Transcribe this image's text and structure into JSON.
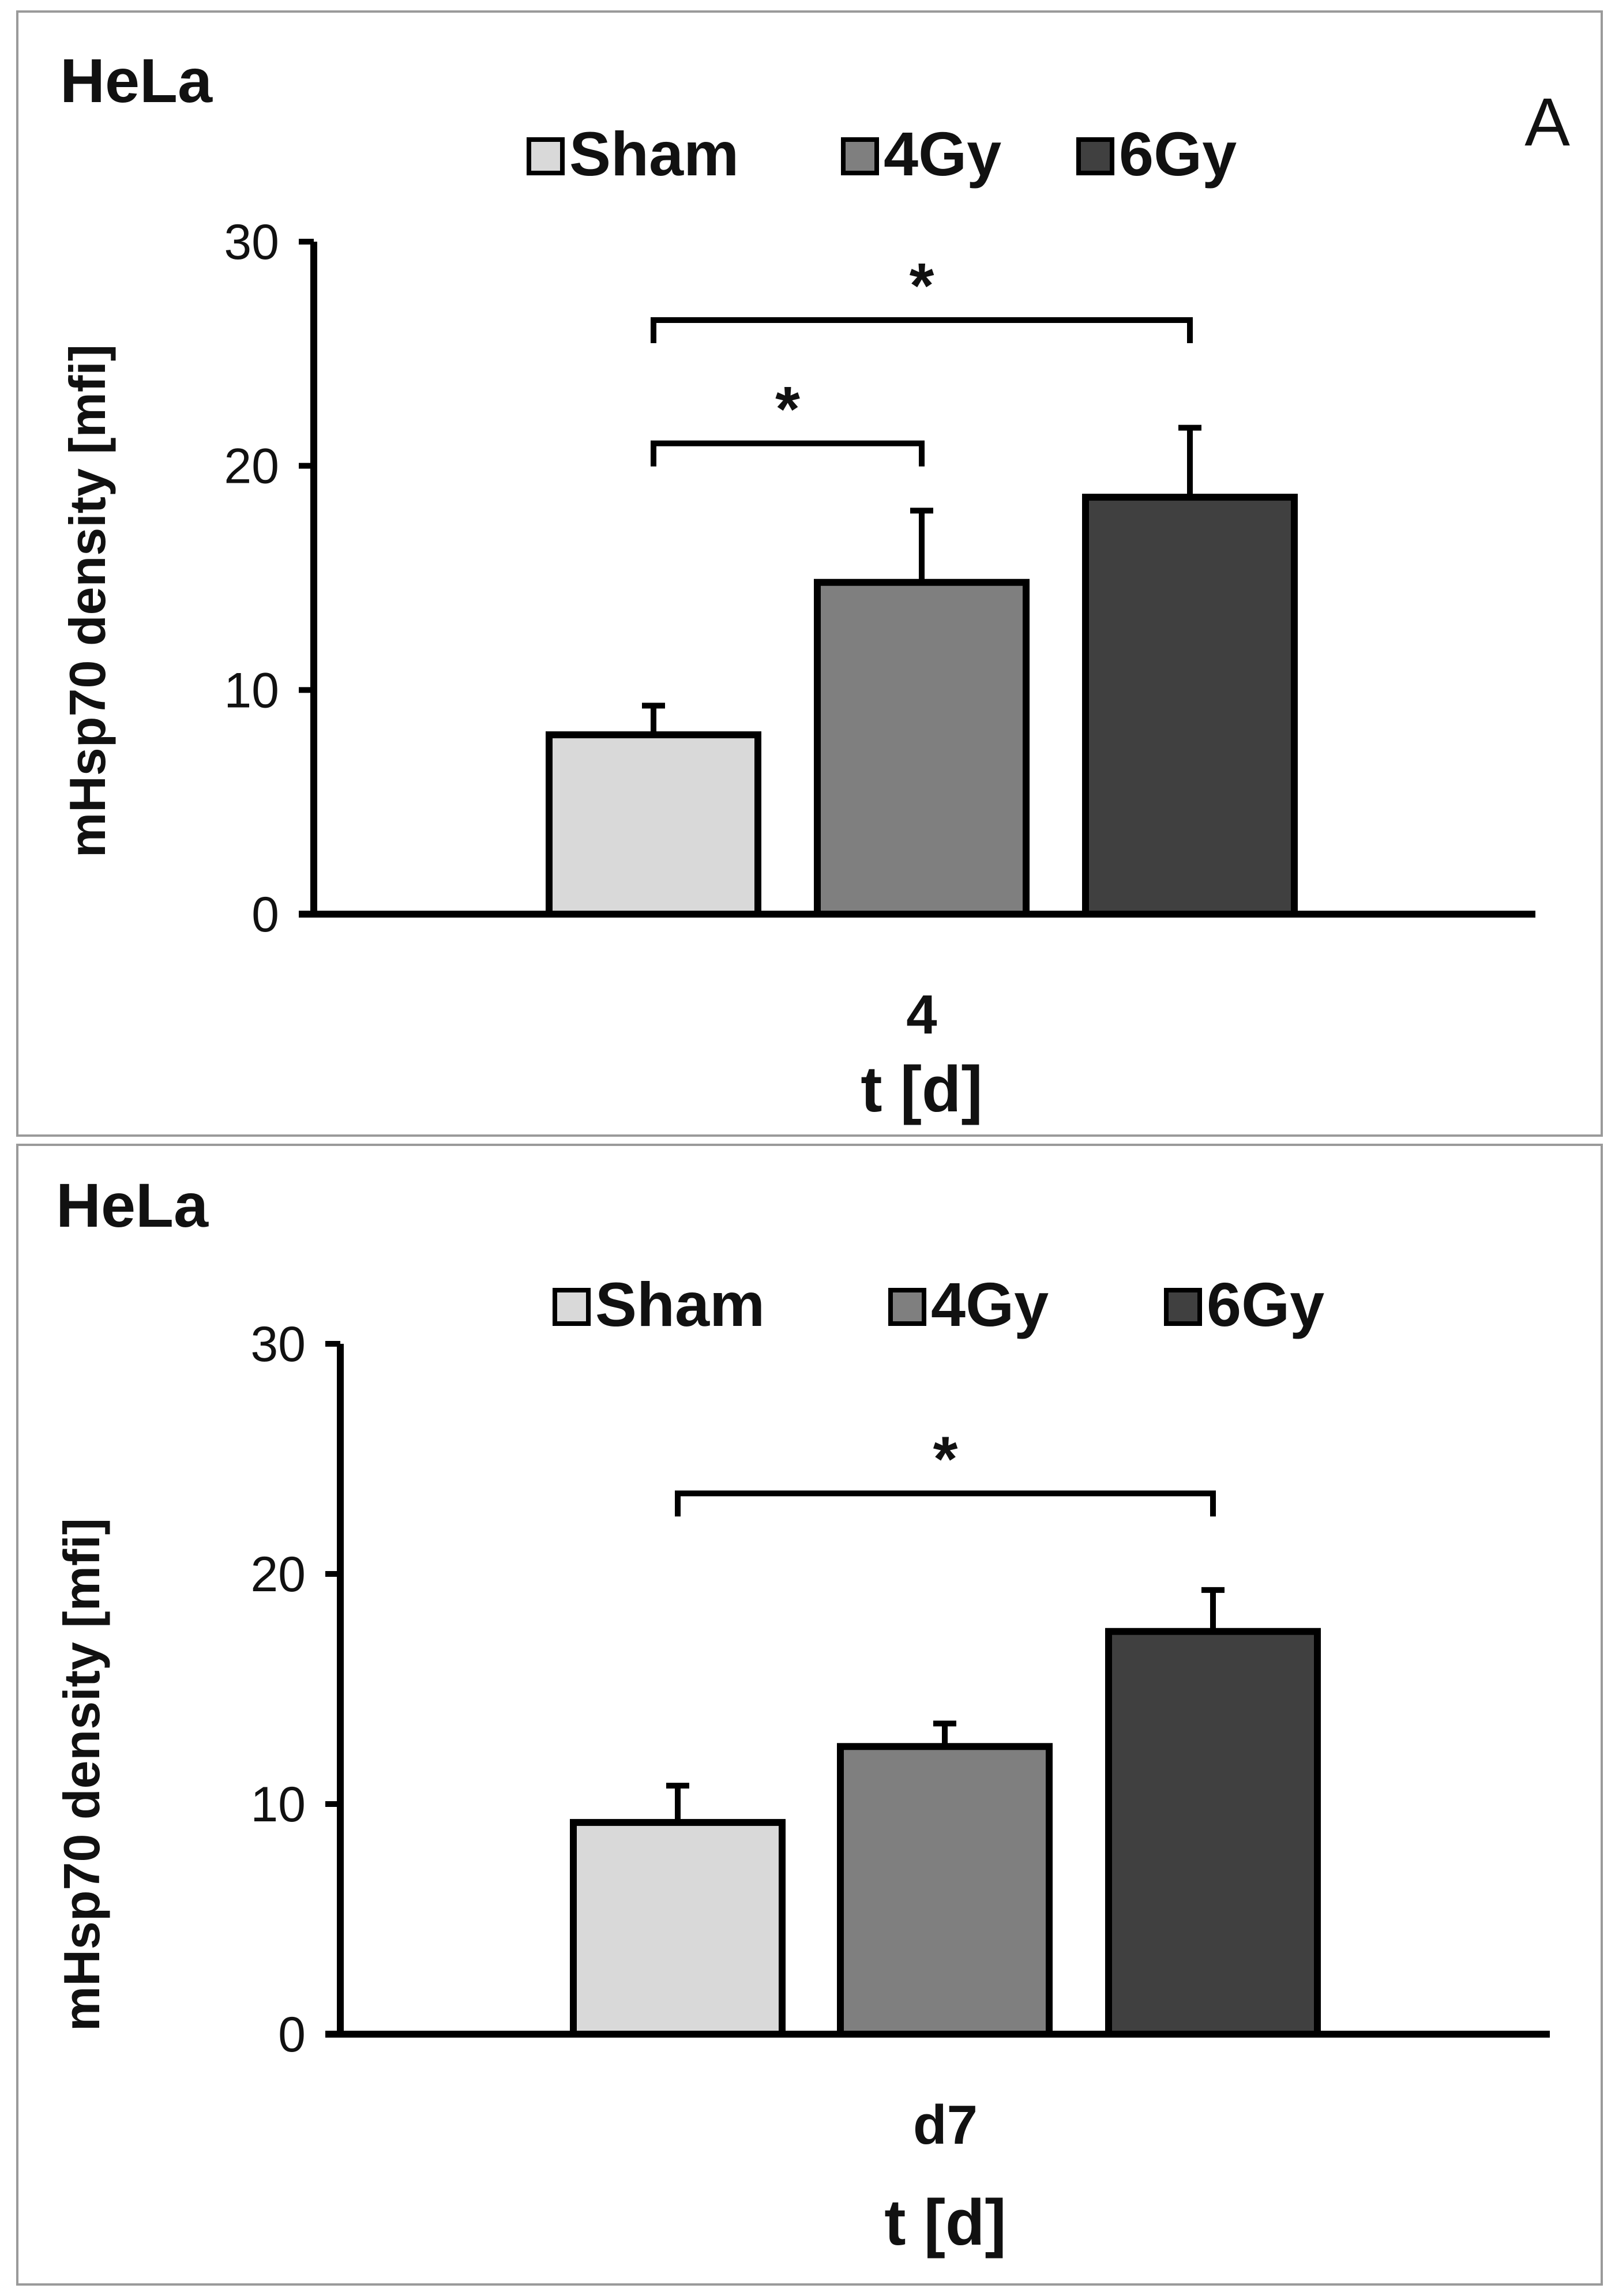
{
  "chart_data": [
    {
      "type": "bar",
      "cell_label": "HeLa",
      "panel_letter": "A",
      "categories": [
        "4"
      ],
      "series": [
        {
          "name": "Sham",
          "values": [
            8.0
          ],
          "error": [
            1.3
          ],
          "color": "#d9d9d9"
        },
        {
          "name": "4Gy",
          "values": [
            14.8
          ],
          "error": [
            3.2
          ],
          "color": "#7f7f7f"
        },
        {
          "name": "6Gy",
          "values": [
            18.6
          ],
          "error": [
            3.1
          ],
          "color": "#404040"
        }
      ],
      "significance": [
        {
          "from": "Sham",
          "to": "4Gy",
          "label": "*",
          "level": 21
        },
        {
          "from": "Sham",
          "to": "6Gy",
          "label": "*",
          "level": 26.5
        }
      ],
      "xlabel": "t [d]",
      "ylabel": "mHsp70 density [mfi]",
      "ylim": [
        0,
        30
      ],
      "yticks": [
        "0",
        "10",
        "20",
        "30"
      ],
      "legend": "top"
    },
    {
      "type": "bar",
      "cell_label": "HeLa",
      "categories": [
        "d7"
      ],
      "series": [
        {
          "name": "Sham",
          "values": [
            9.2
          ],
          "error": [
            1.6
          ],
          "color": "#d9d9d9"
        },
        {
          "name": "4Gy",
          "values": [
            12.5
          ],
          "error": [
            1.0
          ],
          "color": "#7f7f7f"
        },
        {
          "name": "6Gy",
          "values": [
            17.5
          ],
          "error": [
            1.8
          ],
          "color": "#404040"
        }
      ],
      "significance": [
        {
          "from": "Sham",
          "to": "6Gy",
          "label": "*",
          "level": 23.5
        }
      ],
      "xlabel": "t [d]",
      "ylabel": "mHsp70 density [mfi]",
      "ylim": [
        0,
        30
      ],
      "yticks": [
        "0",
        "10",
        "20",
        "30"
      ],
      "legend": "top"
    }
  ]
}
